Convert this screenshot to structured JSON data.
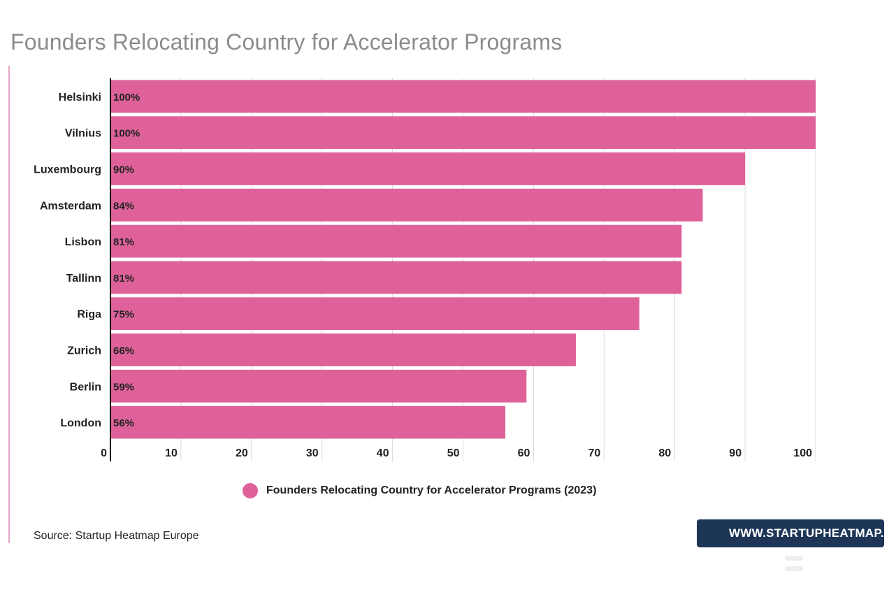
{
  "page": {
    "title": "Founders Relocating Country for Accelerator Programs",
    "source": "Source: Startup Heatmap Europe",
    "promo_link": "WWW.STARTUPHEATMAP.EU"
  },
  "colors": {
    "bar": "#de6299",
    "grid": "#d9d9d9",
    "axis": "#111111",
    "title": "#8c8c8c",
    "promo_bg": "#1d3557"
  },
  "icons": {
    "promo": "cursor-arrow-icon",
    "menu": "menu-bars-icon"
  },
  "chart_data": {
    "type": "bar",
    "orientation": "horizontal",
    "title": "Founders Relocating Country for Accelerator Programs",
    "categories": [
      "Helsinki",
      "Vilnius",
      "Luxembourg",
      "Amsterdam",
      "Lisbon",
      "Tallinn",
      "Riga",
      "Zurich",
      "Berlin",
      "London"
    ],
    "series": [
      {
        "name": "Founders Relocating Country for Accelerator Programs (2023)",
        "values": [
          100,
          100,
          90,
          84,
          81,
          81,
          75,
          66,
          59,
          56
        ],
        "labels": [
          "100%",
          "100%",
          "90%",
          "84%",
          "81%",
          "81%",
          "75%",
          "66%",
          "59%",
          "56%"
        ]
      }
    ],
    "xlim": [
      0,
      100
    ],
    "xticks": [
      0,
      10,
      20,
      30,
      40,
      50,
      60,
      70,
      80,
      90,
      100
    ],
    "grid": true,
    "legend": "bottom-center"
  }
}
